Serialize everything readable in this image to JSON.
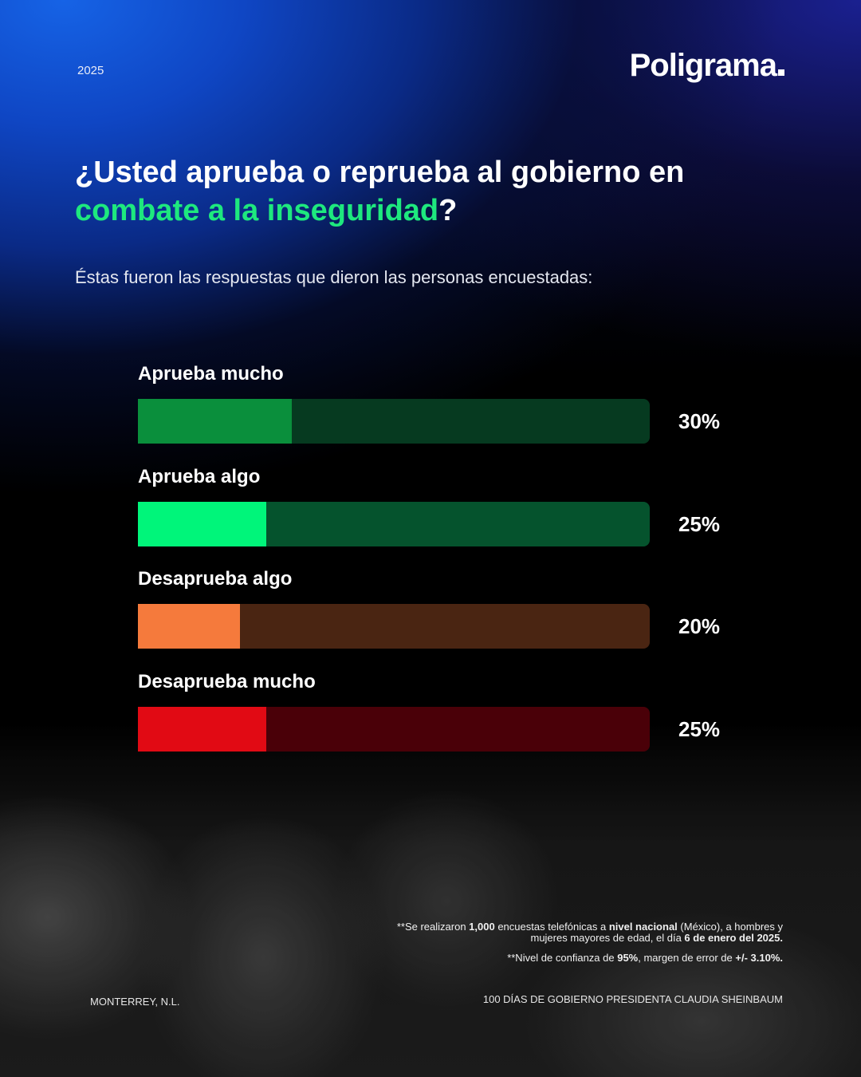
{
  "header": {
    "year": "2025",
    "logo": "Poligrama"
  },
  "question": {
    "part1": "¿Usted aprueba o reprueba al gobierno en ",
    "highlight": "combate a la inseguridad",
    "part2": "?"
  },
  "subtitle": "Éstas fueron las respuestas que dieron las personas encuestadas:",
  "chart_data": {
    "type": "bar",
    "orientation": "horizontal",
    "categories": [
      "Aprueba mucho",
      "Aprueba algo",
      "Desaprueba algo",
      "Desaprueba mucho"
    ],
    "values": [
      30,
      25,
      20,
      25
    ],
    "value_labels": [
      "30%",
      "25%",
      "20%",
      "25%"
    ],
    "xlim": [
      0,
      100
    ],
    "colors": [
      "#0a8f3c",
      "#00f57a",
      "#f57a3c",
      "#e10a14"
    ],
    "track_colors": [
      "#063a20",
      "#05532d",
      "#4a2512",
      "#4a0008"
    ]
  },
  "notes": {
    "line1_a": "**Se realizaron ",
    "line1_b": "1,000",
    "line1_c": " encuestas telefónicas a ",
    "line1_d": "nivel nacional",
    "line1_e": " (México), a hombres y",
    "line2_a": "mujeres mayores de edad, el día ",
    "line2_b": "6 de enero del 2025.",
    "line3_a": "**Nivel de confianza de ",
    "line3_b": "95%",
    "line3_c": ", margen de error de ",
    "line3_d": "+/- 3.10%."
  },
  "footer": {
    "location": "MONTERREY, N.L.",
    "campaign": "100 DÍAS DE GOBIERNO PRESIDENTA CLAUDIA SHEINBAUM"
  }
}
